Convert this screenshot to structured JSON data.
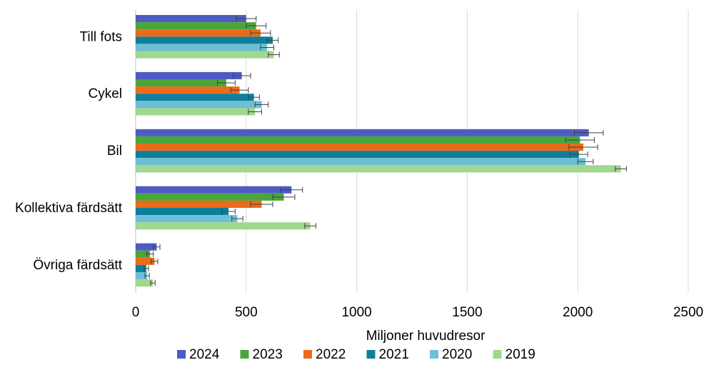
{
  "chart_data": {
    "type": "bar",
    "orientation": "horizontal",
    "title": "",
    "xlabel": "Miljoner huvudresor",
    "ylabel": "",
    "xlim": [
      0,
      2500
    ],
    "xticks": [
      0,
      500,
      1000,
      1500,
      2000,
      2500
    ],
    "xtick_labels": [
      "0",
      "500",
      "1000",
      "1500",
      "2000",
      "2500"
    ],
    "grid": "vertical",
    "legend_position": "bottom",
    "error_bars": true,
    "categories": [
      "Till fots",
      "Cykel",
      "Bil",
      "Kollektiva färdsätt",
      "Övriga färdsätt"
    ],
    "series": [
      {
        "name": "2024",
        "color": "#4f5bc4",
        "values": [
          500,
          480,
          2050,
          705,
          95
        ],
        "errors": [
          45,
          40,
          65,
          50,
          15
        ]
      },
      {
        "name": "2023",
        "color": "#4aa63b",
        "values": [
          545,
          410,
          2010,
          670,
          65
        ],
        "errors": [
          45,
          40,
          65,
          50,
          15
        ]
      },
      {
        "name": "2022",
        "color": "#ea6b19",
        "values": [
          565,
          470,
          2025,
          570,
          85
        ],
        "errors": [
          45,
          40,
          65,
          50,
          15
        ]
      },
      {
        "name": "2021",
        "color": "#0d7f9b",
        "values": [
          620,
          535,
          2005,
          420,
          48
        ],
        "errors": [
          25,
          25,
          40,
          30,
          10
        ]
      },
      {
        "name": "2020",
        "color": "#6cbfd6",
        "values": [
          595,
          570,
          2035,
          460,
          52
        ],
        "errors": [
          30,
          30,
          35,
          25,
          10
        ]
      },
      {
        "name": "2019",
        "color": "#9fd88e",
        "values": [
          625,
          540,
          2195,
          790,
          78
        ],
        "errors": [
          25,
          30,
          25,
          25,
          10
        ]
      }
    ]
  }
}
